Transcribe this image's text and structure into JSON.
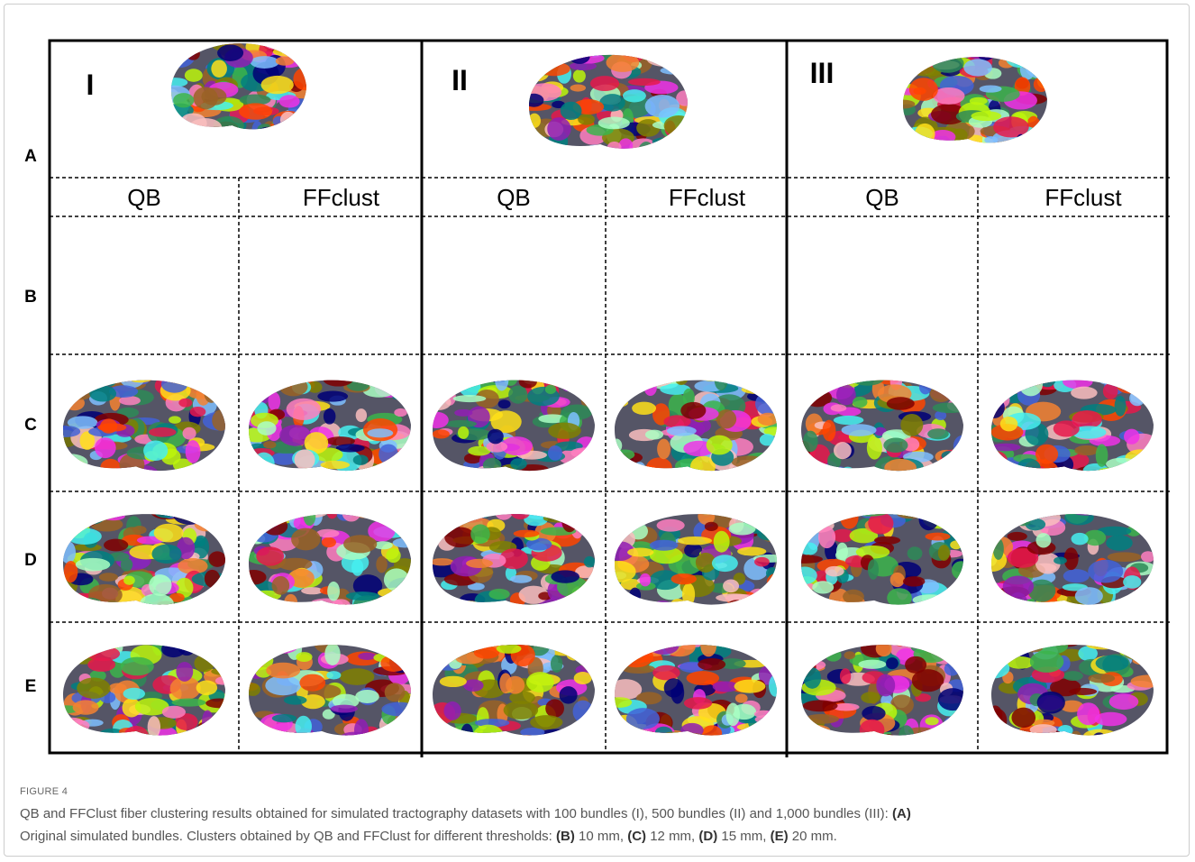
{
  "figure": {
    "rows": [
      "A",
      "B",
      "C",
      "D",
      "E"
    ],
    "columns": [
      {
        "label": "I",
        "subcolumns": [
          "QB",
          "FFclust"
        ]
      },
      {
        "label": "II",
        "subcolumns": [
          "QB",
          "FFclust"
        ]
      },
      {
        "label": "III",
        "subcolumns": [
          "QB",
          "FFclust"
        ]
      }
    ]
  },
  "caption": {
    "label": "FIGURE 4",
    "parts": [
      "QB and FFClust fiber clustering results obtained for simulated tractography datasets with 100 bundles (I), 500 bundles (II) and 1,000 bundles (III): ",
      "(A)",
      "Original simulated bundles. Clusters obtained by QB and FFClust for different thresholds: ",
      "(B)",
      " 10 mm, ",
      "(C)",
      " 12 mm, ",
      "(D)",
      " 15 mm, ",
      "(E)",
      " 20 mm."
    ]
  }
}
